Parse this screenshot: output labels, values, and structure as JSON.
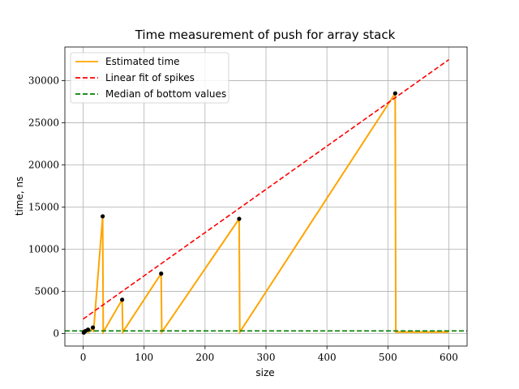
{
  "chart_data": {
    "type": "line",
    "title": "Time measurement of push for array stack",
    "xlabel": "size",
    "ylabel": "time, ns",
    "xlim": [
      -30,
      630
    ],
    "ylim": [
      -1500,
      34000
    ],
    "xticks": [
      0,
      100,
      200,
      300,
      400,
      500,
      600
    ],
    "yticks": [
      0,
      5000,
      10000,
      15000,
      20000,
      25000,
      30000
    ],
    "grid": true,
    "legend_position": "top-left",
    "series": [
      {
        "name": "Estimated time",
        "color": "#ffa500",
        "style": "solid",
        "x": [
          1,
          2,
          3,
          4,
          5,
          8,
          9,
          16,
          17,
          32,
          33,
          64,
          65,
          128,
          129,
          256,
          257,
          512,
          513,
          600
        ],
        "y": [
          100,
          200,
          150,
          300,
          150,
          450,
          150,
          700,
          150,
          13900,
          150,
          4000,
          150,
          7100,
          150,
          13600,
          150,
          28500,
          150,
          150
        ]
      },
      {
        "name": "Linear fit of spikes",
        "color": "#ff0000",
        "style": "dashed",
        "x": [
          0,
          600
        ],
        "y": [
          1700,
          32500
        ]
      },
      {
        "name": "Median of bottom values",
        "color": "#008000",
        "style": "dashed",
        "x": [
          -30,
          630
        ],
        "y": [
          300,
          300
        ]
      }
    ],
    "spike_points": {
      "color": "#000000",
      "x": [
        1,
        2,
        4,
        8,
        16,
        32,
        64,
        128,
        256,
        512
      ],
      "y": [
        100,
        200,
        300,
        450,
        700,
        13900,
        4000,
        7100,
        13600,
        28500
      ]
    }
  }
}
